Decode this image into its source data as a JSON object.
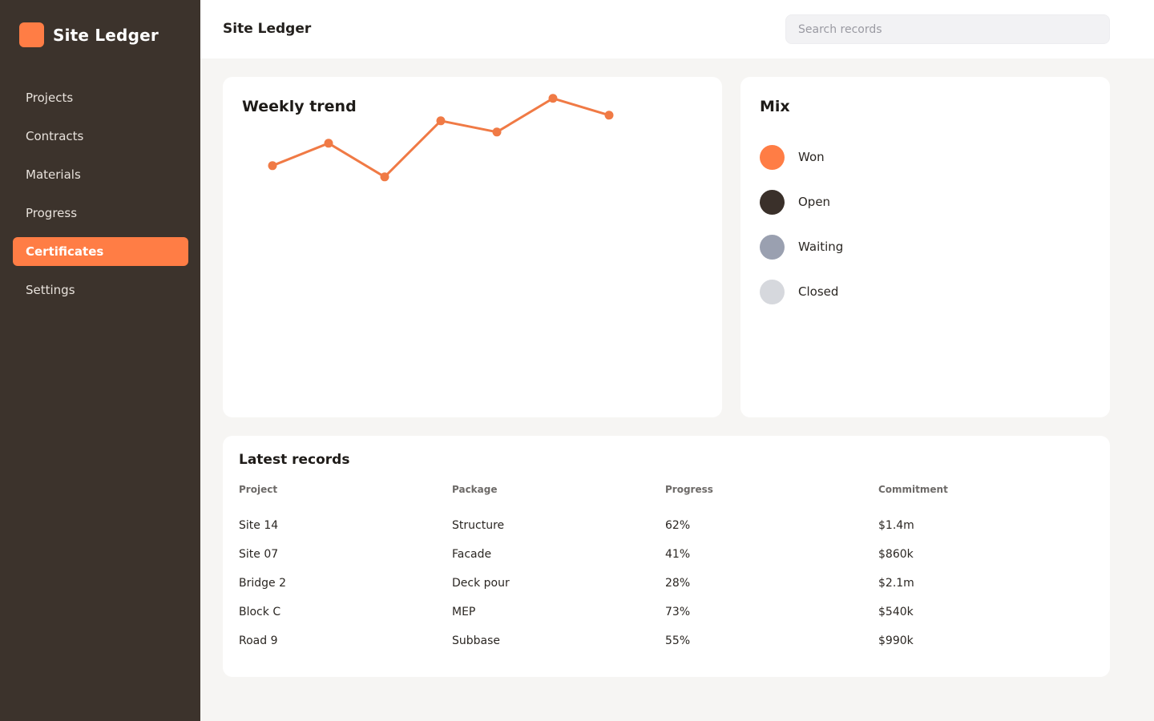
{
  "app": {
    "name": "Site Ledger",
    "brand_color": "#ff7d45"
  },
  "sidebar": {
    "items": [
      {
        "label": "Projects",
        "active": false
      },
      {
        "label": "Contracts",
        "active": false
      },
      {
        "label": "Materials",
        "active": false
      },
      {
        "label": "Progress",
        "active": false
      },
      {
        "label": "Certificates",
        "active": true
      },
      {
        "label": "Settings",
        "active": false
      }
    ]
  },
  "header": {
    "title": "Site Ledger",
    "search_placeholder": "Search records",
    "search_value": ""
  },
  "trend": {
    "title": "Weekly trend"
  },
  "chart_data": {
    "type": "line",
    "title": "Weekly trend",
    "xlabel": "",
    "ylabel": "",
    "x": [
      1,
      2,
      3,
      4,
      5,
      6,
      7
    ],
    "series": [
      {
        "values": [
          38,
          58,
          28,
          78,
          68,
          98,
          83
        ],
        "color": "#f07a45"
      }
    ],
    "ylim": [
      0,
      100
    ],
    "grid": false,
    "legend": "none"
  },
  "mix": {
    "title": "Mix",
    "items": [
      {
        "label": "Won",
        "color": "#ff7d45"
      },
      {
        "label": "Open",
        "color": "#3a302a"
      },
      {
        "label": "Waiting",
        "color": "#9aa0b0"
      },
      {
        "label": "Closed",
        "color": "#d6d8dd"
      }
    ]
  },
  "records": {
    "title": "Latest records",
    "columns": [
      "Project",
      "Package",
      "Progress",
      "Commitment"
    ],
    "rows": [
      [
        "Site 14",
        "Structure",
        "62%",
        "$1.4m"
      ],
      [
        "Site 07",
        "Facade",
        "41%",
        "$860k"
      ],
      [
        "Bridge 2",
        "Deck pour",
        "28%",
        "$2.1m"
      ],
      [
        "Block C",
        "MEP",
        "73%",
        "$540k"
      ],
      [
        "Road 9",
        "Subbase",
        "55%",
        "$990k"
      ]
    ]
  }
}
